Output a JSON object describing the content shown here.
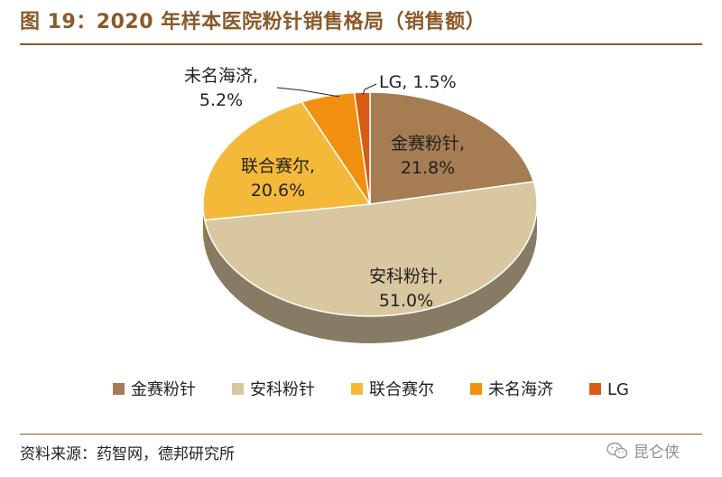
{
  "header": {
    "title": "图 19：2020 年样本医院粉针销售格局（销售额）"
  },
  "footer": {
    "source": "资料来源：药智网，德邦研究所",
    "watermark": "昆仑侠",
    "watermark_icon": "wechat-icon"
  },
  "chart_data": {
    "type": "pie",
    "title": "",
    "slices": [
      {
        "name": "金赛粉针",
        "value": 21.8,
        "label": "21.8%",
        "color": "#a67c52"
      },
      {
        "name": "安科粉针",
        "value": 51.0,
        "label": "51.0%",
        "color": "#d9c7a0"
      },
      {
        "name": "联合赛尔",
        "value": 20.6,
        "label": "20.6%",
        "color": "#f5b93a"
      },
      {
        "name": "未名海济",
        "value": 5.2,
        "label": "5.2%",
        "color": "#f0900e"
      },
      {
        "name": "LG",
        "value": 1.5,
        "label": "1.5%",
        "color": "#d85a14"
      }
    ],
    "start": "top",
    "direction": "clockwise",
    "style": "3d",
    "legend_position": "bottom"
  }
}
